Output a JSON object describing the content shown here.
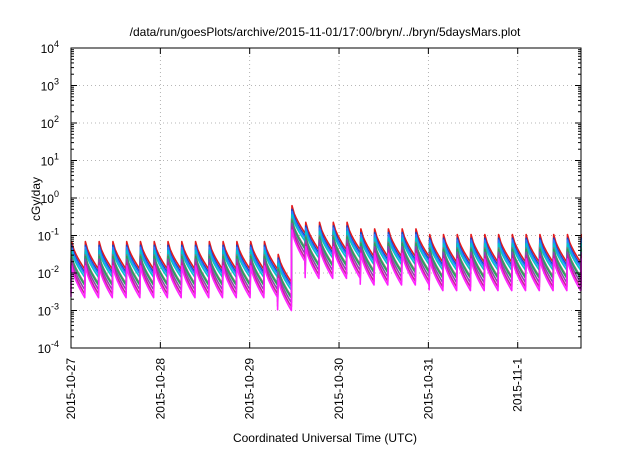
{
  "chart_data": {
    "type": "line",
    "title": "/data/run/goesPlots/archive/2015-11-01/17:00/bryn/../bryn/5daysMars.plot",
    "xlabel": "Coordinated Universal Time (UTC)",
    "ylabel": "cGy/day",
    "yscale": "log",
    "ylim": [
      0.0001,
      10000
    ],
    "xlim": [
      "2015-10-27T00:00",
      "2015-11-01T17:00"
    ],
    "y_ticks": [
      {
        "base": "10",
        "exp": "-4"
      },
      {
        "base": "10",
        "exp": "-3"
      },
      {
        "base": "10",
        "exp": "-2"
      },
      {
        "base": "10",
        "exp": "-1"
      },
      {
        "base": "10",
        "exp": "0"
      },
      {
        "base": "10",
        "exp": "1"
      },
      {
        "base": "10",
        "exp": "2"
      },
      {
        "base": "10",
        "exp": "3"
      },
      {
        "base": "10",
        "exp": "4"
      }
    ],
    "x_ticks": [
      {
        "label": "2015-10-27",
        "date": "2015-10-27T00:00"
      },
      {
        "label": "2015-10-28",
        "date": "2015-10-28T00:00"
      },
      {
        "label": "2015-10-29",
        "date": "2015-10-29T00:00"
      },
      {
        "label": "2015-10-30",
        "date": "2015-10-30T00:00"
      },
      {
        "label": "2015-10-31",
        "date": "2015-10-31T00:00"
      },
      {
        "label": "2015-11-1",
        "date": "2015-11-01T00:00"
      }
    ],
    "grid": true,
    "legend": "none",
    "sawtooth_period_hours": 3.7,
    "segments": [
      {
        "start": "2015-10-27T00:00",
        "end": "2015-10-29T05:00",
        "peak": 0.055
      },
      {
        "start": "2015-10-29T05:00",
        "end": "2015-10-29T08:00",
        "peak": 0.025
      },
      {
        "start": "2015-10-29T08:00",
        "end": "2015-10-29T14:00",
        "peak": 0.5
      },
      {
        "start": "2015-10-29T14:00",
        "end": "2015-10-30T04:00",
        "peak": 0.18
      },
      {
        "start": "2015-10-30T04:00",
        "end": "2015-10-30T22:00",
        "peak": 0.12
      },
      {
        "start": "2015-10-30T22:00",
        "end": "2015-11-01T17:00",
        "peak": 0.085
      }
    ],
    "series": [
      {
        "color": "#e41a1c",
        "peak_factor": 1.25,
        "trough_factor": 0.23
      },
      {
        "color": "#1f3fbf",
        "peak_factor": 1.0,
        "trough_factor": 0.19
      },
      {
        "color": "#2a7fff",
        "peak_factor": 0.88,
        "trough_factor": 0.17
      },
      {
        "color": "#00c8c8",
        "peak_factor": 0.72,
        "trough_factor": 0.14
      },
      {
        "color": "#7a7a7a",
        "peak_factor": 0.55,
        "trough_factor": 0.095
      },
      {
        "color": "#26a65b",
        "peak_factor": 0.5,
        "trough_factor": 0.085
      },
      {
        "color": "#8e44ad",
        "peak_factor": 0.42,
        "trough_factor": 0.065
      },
      {
        "color": "#c81e9e",
        "peak_factor": 0.34,
        "trough_factor": 0.05
      },
      {
        "color": "#ff22ff",
        "peak_factor": 0.28,
        "trough_factor": 0.04
      }
    ]
  }
}
